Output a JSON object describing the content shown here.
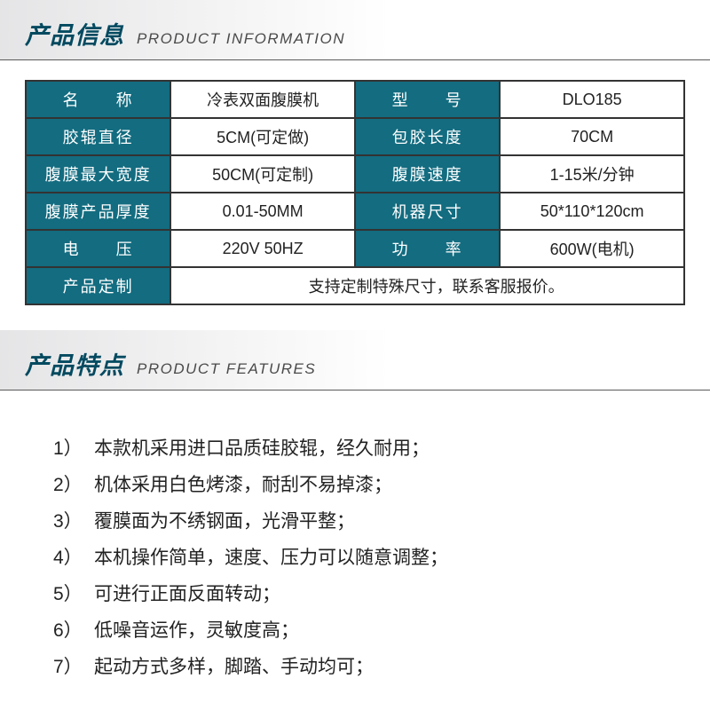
{
  "colors": {
    "header_text": "#034a60",
    "sub_header_text": "#4a4a4a",
    "label_bg": "#136c80",
    "label_text": "#ffffff",
    "value_bg": "#ffffff",
    "value_text": "#222222",
    "border": "#333333",
    "divider": "#5a5a5a"
  },
  "section1": {
    "title_cn": "产品信息",
    "title_en": "PRODUCT INFORMATION"
  },
  "specs": {
    "rows": [
      {
        "l1": "名　　称",
        "v1": "冷表双面腹膜机",
        "l2": "型　　号",
        "v2": "DLO185"
      },
      {
        "l1": "胶辊直径",
        "v1": "5CM(可定做)",
        "l2": "包胶长度",
        "v2": "70CM"
      },
      {
        "l1": "腹膜最大宽度",
        "v1": "50CM(可定制)",
        "l2": "腹膜速度",
        "v2": "1-15米/分钟"
      },
      {
        "l1": "腹膜产品厚度",
        "v1": "0.01-50MM",
        "l2": "机器尺寸",
        "v2": "50*110*120cm"
      },
      {
        "l1": "电　　压",
        "v1": "220V 50HZ",
        "l2": "功　　率",
        "v2": "600W(电机)"
      }
    ],
    "note_label": "产品定制",
    "note_value": "支持定制特殊尺寸，联系客服报价。"
  },
  "section2": {
    "title_cn": "产品特点",
    "title_en": "PRODUCT FEATURES"
  },
  "features": [
    "本款机采用进口品质硅胶辊，经久耐用；",
    "机体采用白色烤漆，耐刮不易掉漆；",
    "覆膜面为不绣钢面，光滑平整；",
    "本机操作简单，速度、压力可以随意调整；",
    "可进行正面反面转动；",
    "低噪音运作，灵敏度高；",
    "起动方式多样，脚踏、手动均可；"
  ]
}
